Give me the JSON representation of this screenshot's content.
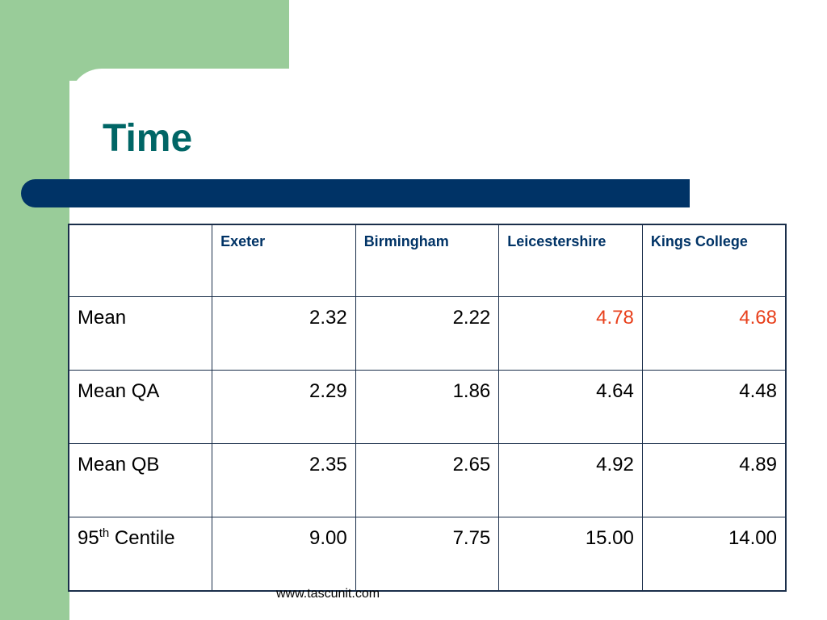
{
  "slide": {
    "title": "Time",
    "footer": "www.tascunit.com"
  },
  "table": {
    "columns": [
      "",
      "Exeter",
      "Birmingham",
      "Leicestershire",
      "Kings College"
    ],
    "rows": [
      {
        "label": "Mean",
        "values": [
          "2.32",
          "2.22",
          "4.78",
          "4.68"
        ]
      },
      {
        "label": "Mean QA",
        "values": [
          "2.29",
          "1.86",
          "4.64",
          "4.48"
        ]
      },
      {
        "label": "Mean QB",
        "values": [
          "2.35",
          "2.65",
          "4.92",
          "4.89"
        ]
      },
      {
        "label_prefix": "95",
        "label_sup": "th",
        "label_suffix": " Centile",
        "values": [
          "9.00",
          "7.75",
          "15.00",
          "14.00"
        ]
      }
    ],
    "highlight_color": "#e8401c"
  },
  "colors": {
    "accent_green": "#99cc99",
    "title": "#006666",
    "bar": "#003366"
  }
}
